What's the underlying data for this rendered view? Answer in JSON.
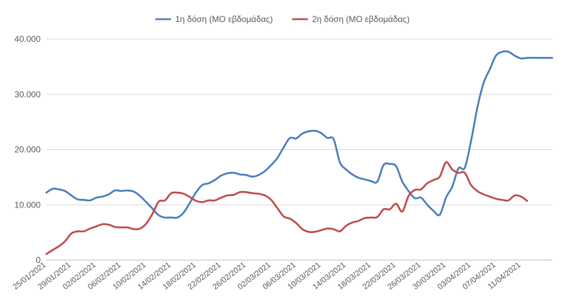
{
  "chart_data": {
    "type": "line",
    "title": "",
    "xlabel": "",
    "ylabel": "",
    "ylim": [
      0,
      40000
    ],
    "yticks": [
      0,
      10000,
      20000,
      30000,
      40000
    ],
    "ytick_labels": [
      "0",
      "10.000",
      "20.000",
      "30.000",
      "40.000"
    ],
    "xtick_labels": [
      "25/01/2021",
      "29/01/2021",
      "02/02/2021",
      "06/02/2021",
      "10/02/2021",
      "14/02/2021",
      "18/02/2021",
      "22/02/2021",
      "26/02/2021",
      "02/03/2021",
      "06/03/2021",
      "10/03/2021",
      "14/03/2021",
      "18/03/2021",
      "22/03/2021",
      "26/03/2021",
      "30/03/2021",
      "03/04/2021",
      "07/04/2021",
      "11/04/2021"
    ],
    "grid": true,
    "legend_position": "top-center",
    "series": [
      {
        "name": "1η δόση (ΜΟ εβδομάδας)",
        "color": "#4a7ebb",
        "x": [
          "25/01/2021",
          "26/01/2021",
          "27/01/2021",
          "28/01/2021",
          "29/01/2021",
          "30/01/2021",
          "31/01/2021",
          "01/02/2021",
          "02/02/2021",
          "03/02/2021",
          "04/02/2021",
          "05/02/2021",
          "06/02/2021",
          "07/02/2021",
          "08/02/2021",
          "09/02/2021",
          "10/02/2021",
          "11/02/2021",
          "12/02/2021",
          "13/02/2021",
          "14/02/2021",
          "15/02/2021",
          "16/02/2021",
          "17/02/2021",
          "18/02/2021",
          "19/02/2021",
          "20/02/2021",
          "21/02/2021",
          "22/02/2021",
          "23/02/2021",
          "24/02/2021",
          "25/02/2021",
          "26/02/2021",
          "27/02/2021",
          "28/02/2021",
          "01/03/2021",
          "02/03/2021",
          "03/03/2021",
          "04/03/2021",
          "05/03/2021",
          "06/03/2021",
          "07/03/2021",
          "08/03/2021",
          "09/03/2021",
          "10/03/2021",
          "11/03/2021",
          "12/03/2021",
          "13/03/2021",
          "14/03/2021",
          "15/03/2021",
          "16/03/2021",
          "17/03/2021",
          "18/03/2021",
          "19/03/2021",
          "20/03/2021",
          "21/03/2021",
          "22/03/2021",
          "23/03/2021",
          "24/03/2021",
          "25/03/2021",
          "26/03/2021",
          "27/03/2021",
          "28/03/2021",
          "29/03/2021",
          "30/03/2021",
          "31/03/2021",
          "01/04/2021",
          "02/04/2021",
          "03/04/2021",
          "04/04/2021",
          "05/04/2021",
          "06/04/2021",
          "07/04/2021",
          "08/04/2021",
          "09/04/2021",
          "10/04/2021",
          "11/04/2021",
          "12/04/2021",
          "13/04/2021",
          "14/04/2021",
          "15/04/2021",
          "16/04/2021"
        ],
        "values": [
          12200,
          12900,
          12800,
          12500,
          11700,
          11000,
          10900,
          10800,
          11300,
          11500,
          11900,
          12600,
          12500,
          12600,
          12400,
          11600,
          10500,
          9300,
          8100,
          7700,
          7700,
          7700,
          8600,
          10400,
          12300,
          13600,
          13900,
          14500,
          15300,
          15700,
          15800,
          15500,
          15400,
          15100,
          15400,
          16100,
          17200,
          18500,
          20400,
          22100,
          22000,
          22900,
          23300,
          23400,
          23000,
          22100,
          21900,
          17700,
          16400,
          15500,
          14900,
          14600,
          14300,
          14200,
          17200,
          17400,
          17000,
          14200,
          12500,
          11200,
          11300,
          10000,
          8900,
          8200,
          11300,
          13300,
          16600,
          16700,
          21500,
          27500,
          32000,
          34500,
          37000,
          37700,
          37700,
          37000,
          36500,
          36600,
          36600,
          36600,
          36600,
          36600
        ],
        "visible_points": 78
      },
      {
        "name": "2η δόση (ΜΟ εβδομάδας)",
        "color": "#be4b48",
        "x": [
          "25/01/2021",
          "26/01/2021",
          "27/01/2021",
          "28/01/2021",
          "29/01/2021",
          "30/01/2021",
          "31/01/2021",
          "01/02/2021",
          "02/02/2021",
          "03/02/2021",
          "04/02/2021",
          "05/02/2021",
          "06/02/2021",
          "07/02/2021",
          "08/02/2021",
          "09/02/2021",
          "10/02/2021",
          "11/02/2021",
          "12/02/2021",
          "13/02/2021",
          "14/02/2021",
          "15/02/2021",
          "16/02/2021",
          "17/02/2021",
          "18/02/2021",
          "19/02/2021",
          "20/02/2021",
          "21/02/2021",
          "22/02/2021",
          "23/02/2021",
          "24/02/2021",
          "25/02/2021",
          "26/02/2021",
          "27/02/2021",
          "28/02/2021",
          "01/03/2021",
          "02/03/2021",
          "03/03/2021",
          "04/03/2021",
          "05/03/2021",
          "06/03/2021",
          "07/03/2021",
          "08/03/2021",
          "09/03/2021",
          "10/03/2021",
          "11/03/2021",
          "12/03/2021",
          "13/03/2021",
          "14/03/2021",
          "15/03/2021",
          "16/03/2021",
          "17/03/2021",
          "18/03/2021",
          "19/03/2021",
          "20/03/2021",
          "21/03/2021",
          "22/03/2021",
          "23/03/2021",
          "24/03/2021",
          "25/03/2021",
          "26/03/2021",
          "27/03/2021",
          "28/03/2021",
          "29/03/2021",
          "30/03/2021",
          "31/03/2021",
          "01/04/2021",
          "02/04/2021",
          "03/04/2021",
          "04/04/2021",
          "05/04/2021",
          "06/04/2021",
          "07/04/2021",
          "08/04/2021",
          "09/04/2021",
          "10/04/2021",
          "11/04/2021",
          "12/04/2021"
        ],
        "values": [
          1100,
          1800,
          2500,
          3400,
          4800,
          5200,
          5200,
          5700,
          6100,
          6500,
          6400,
          6000,
          5900,
          5900,
          5600,
          5700,
          6600,
          8400,
          10600,
          10800,
          12100,
          12200,
          12000,
          11400,
          10700,
          10500,
          10800,
          10800,
          11300,
          11700,
          11800,
          12300,
          12300,
          12100,
          12000,
          11700,
          10900,
          9400,
          7900,
          7500,
          6700,
          5600,
          5100,
          5100,
          5400,
          5700,
          5600,
          5200,
          6200,
          6800,
          7100,
          7600,
          7700,
          7800,
          9200,
          9200,
          10200,
          8800,
          11600,
          12700,
          12800,
          13900,
          14500,
          15100,
          17700,
          16400,
          15800,
          15800,
          13600,
          12500,
          11900,
          11500,
          11100,
          10900,
          10800,
          11700,
          11500,
          10700
        ]
      }
    ]
  }
}
